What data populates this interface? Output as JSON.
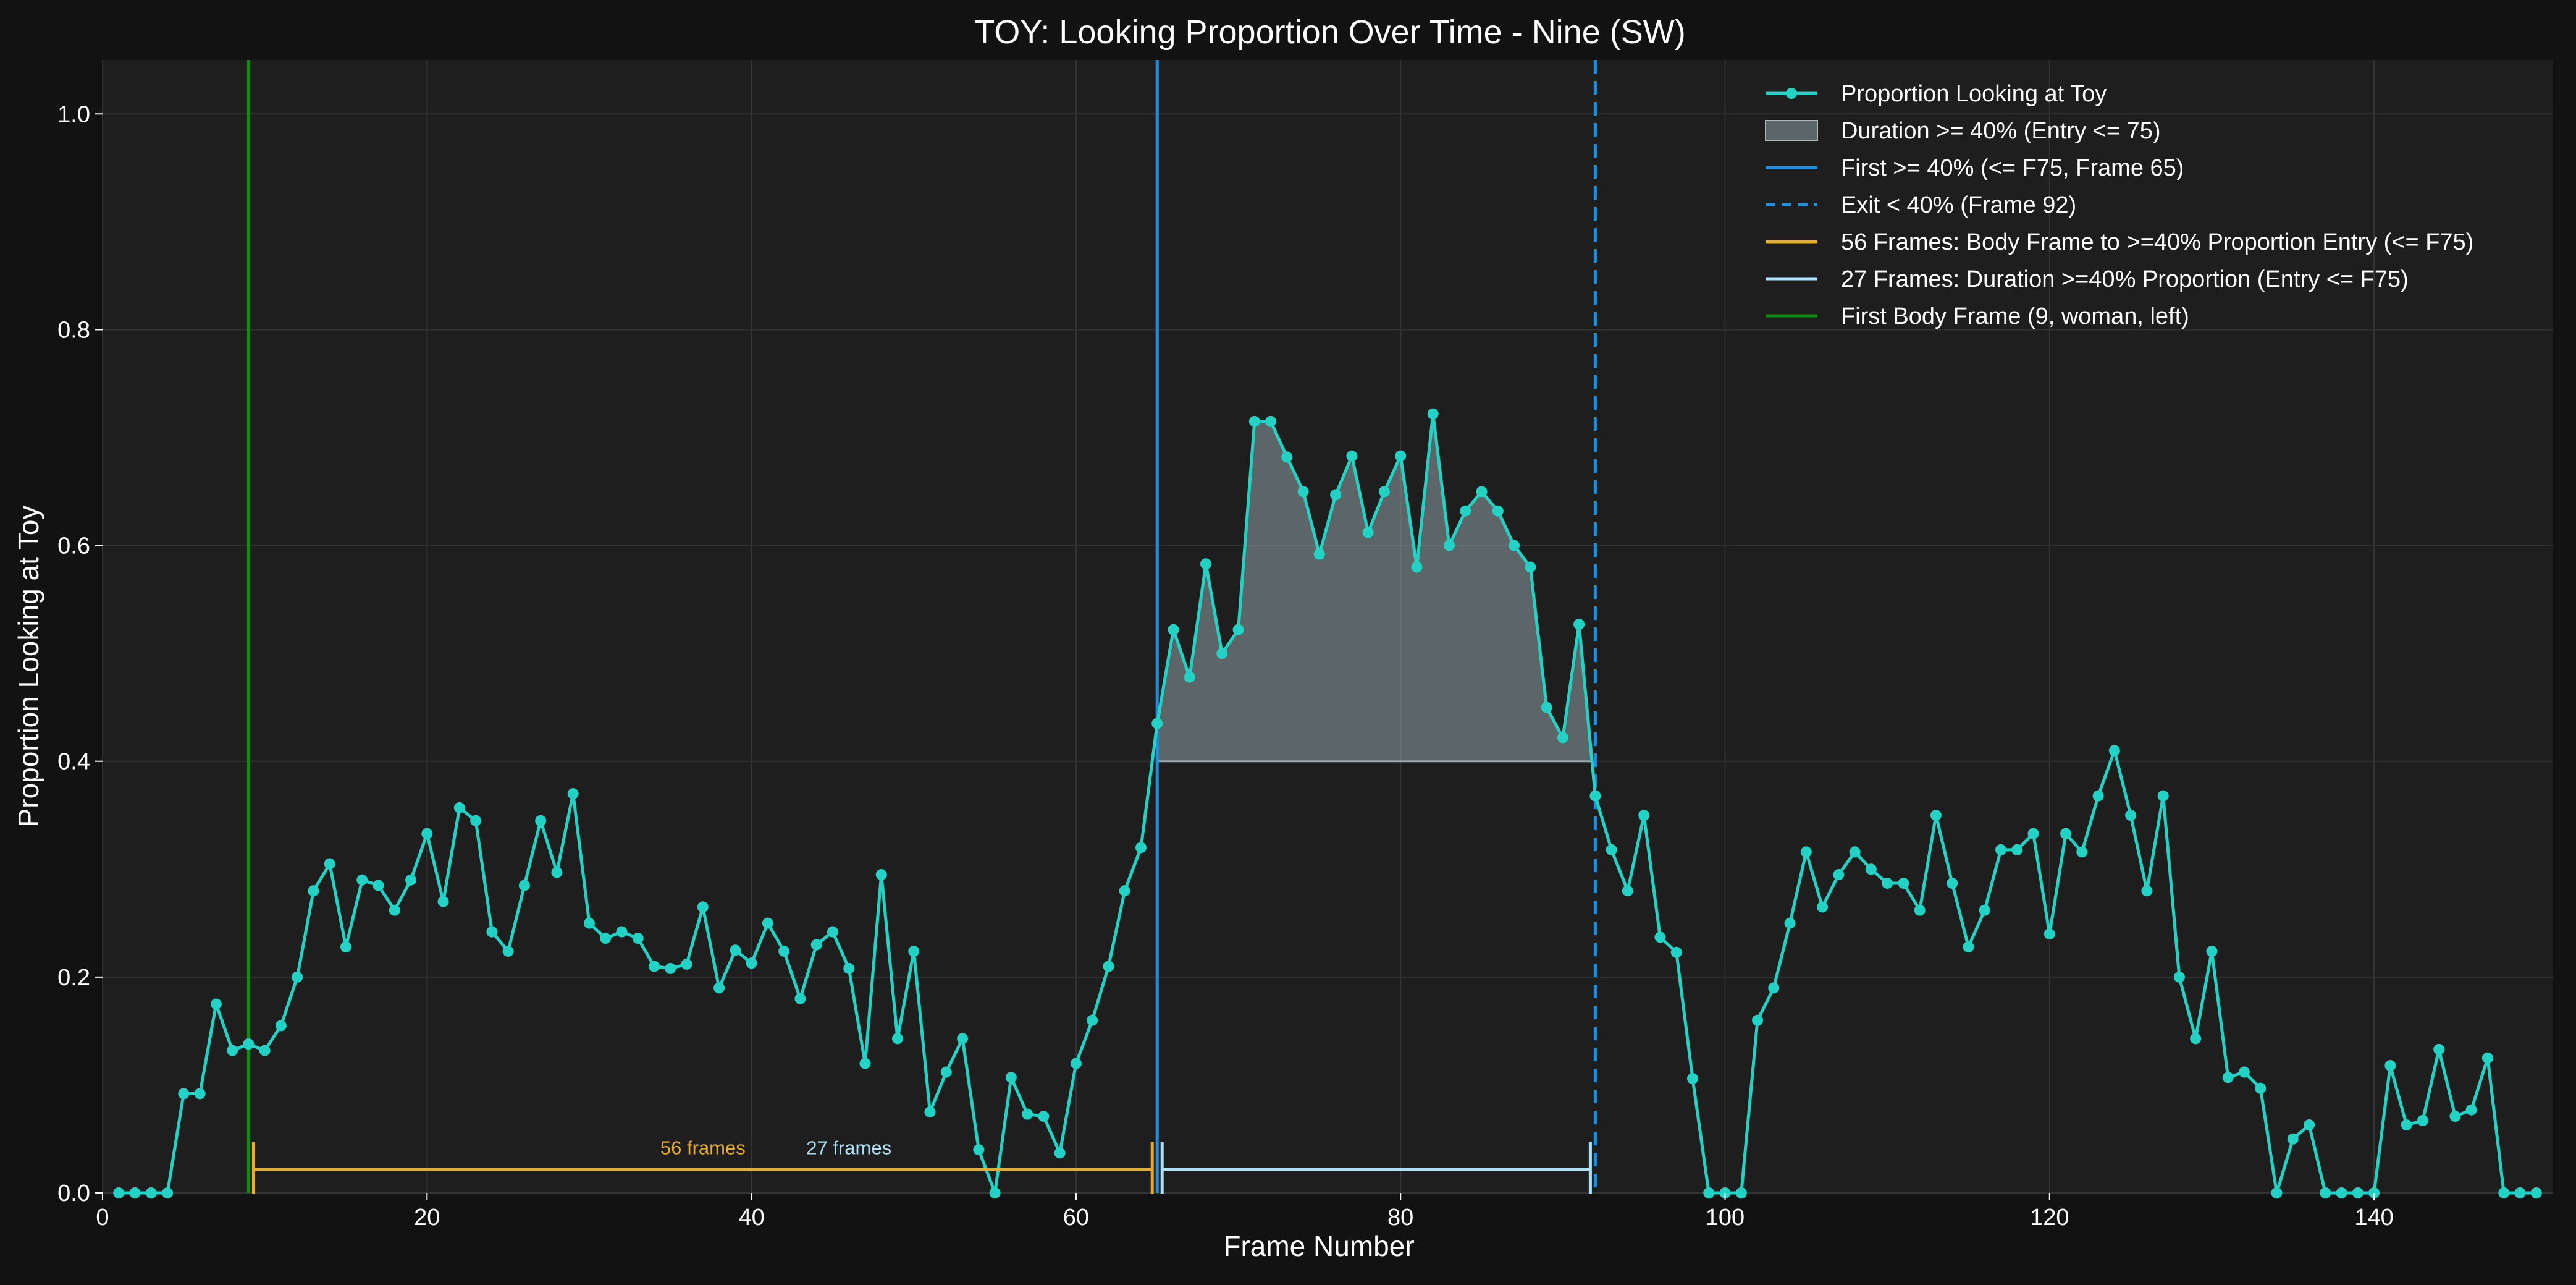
{
  "chart_data": {
    "type": "line",
    "title": "TOY: Looking Proportion Over Time - Nine (SW)",
    "xlabel": "Frame Number",
    "ylabel": "Proportion Looking at Toy",
    "xlim": [
      0,
      151
    ],
    "ylim": [
      0,
      1.05
    ],
    "x_ticks": [
      0,
      20,
      40,
      60,
      80,
      100,
      120,
      140
    ],
    "y_ticks": [
      0.0,
      0.2,
      0.4,
      0.6,
      0.8,
      1.0
    ],
    "x_tick_labels": [
      "0",
      "20",
      "40",
      "60",
      "80",
      "100",
      "120",
      "140"
    ],
    "y_tick_labels": [
      "0.0",
      "0.2",
      "0.4",
      "0.6",
      "0.8",
      "1.0"
    ],
    "grid": true,
    "legend_position": "top-right",
    "series": [
      {
        "name": "Proportion Looking at Toy",
        "color": "#22d3c5",
        "x": [
          1,
          2,
          3,
          4,
          5,
          6,
          7,
          8,
          9,
          10,
          11,
          12,
          13,
          14,
          15,
          16,
          17,
          18,
          19,
          20,
          21,
          22,
          23,
          24,
          25,
          26,
          27,
          28,
          29,
          30,
          31,
          32,
          33,
          34,
          35,
          36,
          37,
          38,
          39,
          40,
          41,
          42,
          43,
          44,
          45,
          46,
          47,
          48,
          49,
          50,
          51,
          52,
          53,
          54,
          55,
          56,
          57,
          58,
          59,
          60,
          61,
          62,
          63,
          64,
          65,
          66,
          67,
          68,
          69,
          70,
          71,
          72,
          73,
          74,
          75,
          76,
          77,
          78,
          79,
          80,
          81,
          82,
          83,
          84,
          85,
          86,
          87,
          88,
          89,
          90,
          91,
          92,
          93,
          94,
          95,
          96,
          97,
          98,
          99,
          100,
          101,
          102,
          103,
          104,
          105,
          106,
          107,
          108,
          109,
          110,
          111,
          112,
          113,
          114,
          115,
          116,
          117,
          118,
          119,
          120,
          121,
          122,
          123,
          124,
          125,
          126,
          127,
          128,
          129,
          130,
          131,
          132,
          133,
          134,
          135,
          136,
          137,
          138,
          139,
          140,
          141,
          142,
          143,
          144,
          145,
          146,
          147,
          148,
          149,
          150
        ],
        "values": [
          0,
          0,
          0,
          0,
          0.092,
          0.092,
          0.175,
          0.132,
          0.138,
          0.132,
          0.155,
          0.2,
          0.28,
          0.305,
          0.228,
          0.29,
          0.285,
          0.262,
          0.29,
          0.333,
          0.27,
          0.357,
          0.345,
          0.242,
          0.224,
          0.285,
          0.345,
          0.297,
          0.37,
          0.25,
          0.236,
          0.242,
          0.236,
          0.21,
          0.208,
          0.212,
          0.265,
          0.19,
          0.225,
          0.213,
          0.25,
          0.224,
          0.18,
          0.23,
          0.242,
          0.208,
          0.12,
          0.295,
          0.143,
          0.224,
          0.075,
          0.112,
          0.143,
          0.04,
          0,
          0.107,
          0.073,
          0.071,
          0.037,
          0.12,
          0.16,
          0.21,
          0.28,
          0.32,
          0.435,
          0.522,
          0.478,
          0.583,
          0.5,
          0.522,
          0.715,
          0.715,
          0.682,
          0.65,
          0.592,
          0.647,
          0.683,
          0.612,
          0.65,
          0.683,
          0.58,
          0.722,
          0.6,
          0.632,
          0.65,
          0.632,
          0.6,
          0.58,
          0.45,
          0.422,
          0.527,
          0.368,
          0.318,
          0.28,
          0.35,
          0.237,
          0.223,
          0.106,
          0,
          0,
          0,
          0.16,
          0.19,
          0.25,
          0.316,
          0.265,
          0.295,
          0.316,
          0.3,
          0.287,
          0.287,
          0.262,
          0.35,
          0.287,
          0.228,
          0.262,
          0.318,
          0.318,
          0.333,
          0.24,
          0.333,
          0.316,
          0.368,
          0.41,
          0.35,
          0.28,
          0.368,
          0.2,
          0.143,
          0.224,
          0.107,
          0.112,
          0.097,
          0,
          0.05,
          0.063,
          0,
          0,
          0,
          0,
          0.118,
          0.063,
          0.067,
          0.133,
          0.071,
          0.077,
          0.125,
          0,
          0,
          0
        ]
      }
    ],
    "fill_region": {
      "name": "Duration >= 40% (Entry <= 75)",
      "x_start": 65,
      "x_end": 92,
      "y_baseline": 0.4,
      "color": "#8fa3a6"
    },
    "vertical_lines": [
      {
        "name": "First >= 40% (<= F75, Frame 65)",
        "x": 65,
        "color": "#1f8fe0",
        "style": "solid"
      },
      {
        "name": "Exit < 40% (Frame 92)",
        "x": 92,
        "color": "#1f8fe0",
        "style": "dashed"
      },
      {
        "name": "First Body Frame (9, woman, left)",
        "x": 9,
        "color": "#148a14",
        "style": "solid"
      }
    ],
    "brackets": [
      {
        "name": "56 Frames: Body Frame to >=40% Proportion Entry (<= F75)",
        "x_start": 9,
        "x_end": 65,
        "y": 0.022,
        "color": "#e6ac2e",
        "label": "56 frames",
        "label_x": 37
      },
      {
        "name": "27 Frames: Duration >=40% Proportion (Entry <= F75)",
        "x_start": 65,
        "x_end": 92,
        "y": 0.022,
        "color": "#aee0f6",
        "label": "27 frames",
        "label_x": 46
      }
    ],
    "legend": [
      {
        "label": "Proportion Looking at Toy",
        "kind": "line-marker",
        "color": "#22d3c5"
      },
      {
        "label": "Duration >= 40% (Entry <= 75)",
        "kind": "patch",
        "color": "#8fa3a6"
      },
      {
        "label": "First >= 40% (<= F75, Frame 65)",
        "kind": "line",
        "color": "#1f8fe0"
      },
      {
        "label": "Exit < 40% (Frame 92)",
        "kind": "dashed",
        "color": "#1f8fe0"
      },
      {
        "label": "56 Frames: Body Frame to >=40% Proportion Entry (<= F75)",
        "kind": "line",
        "color": "#e6ac2e"
      },
      {
        "label": "27 Frames: Duration >=40% Proportion (Entry <= F75)",
        "kind": "line",
        "color": "#aee0f6"
      },
      {
        "label": "First Body Frame (9, woman, left)",
        "kind": "line",
        "color": "#148a14"
      }
    ]
  }
}
